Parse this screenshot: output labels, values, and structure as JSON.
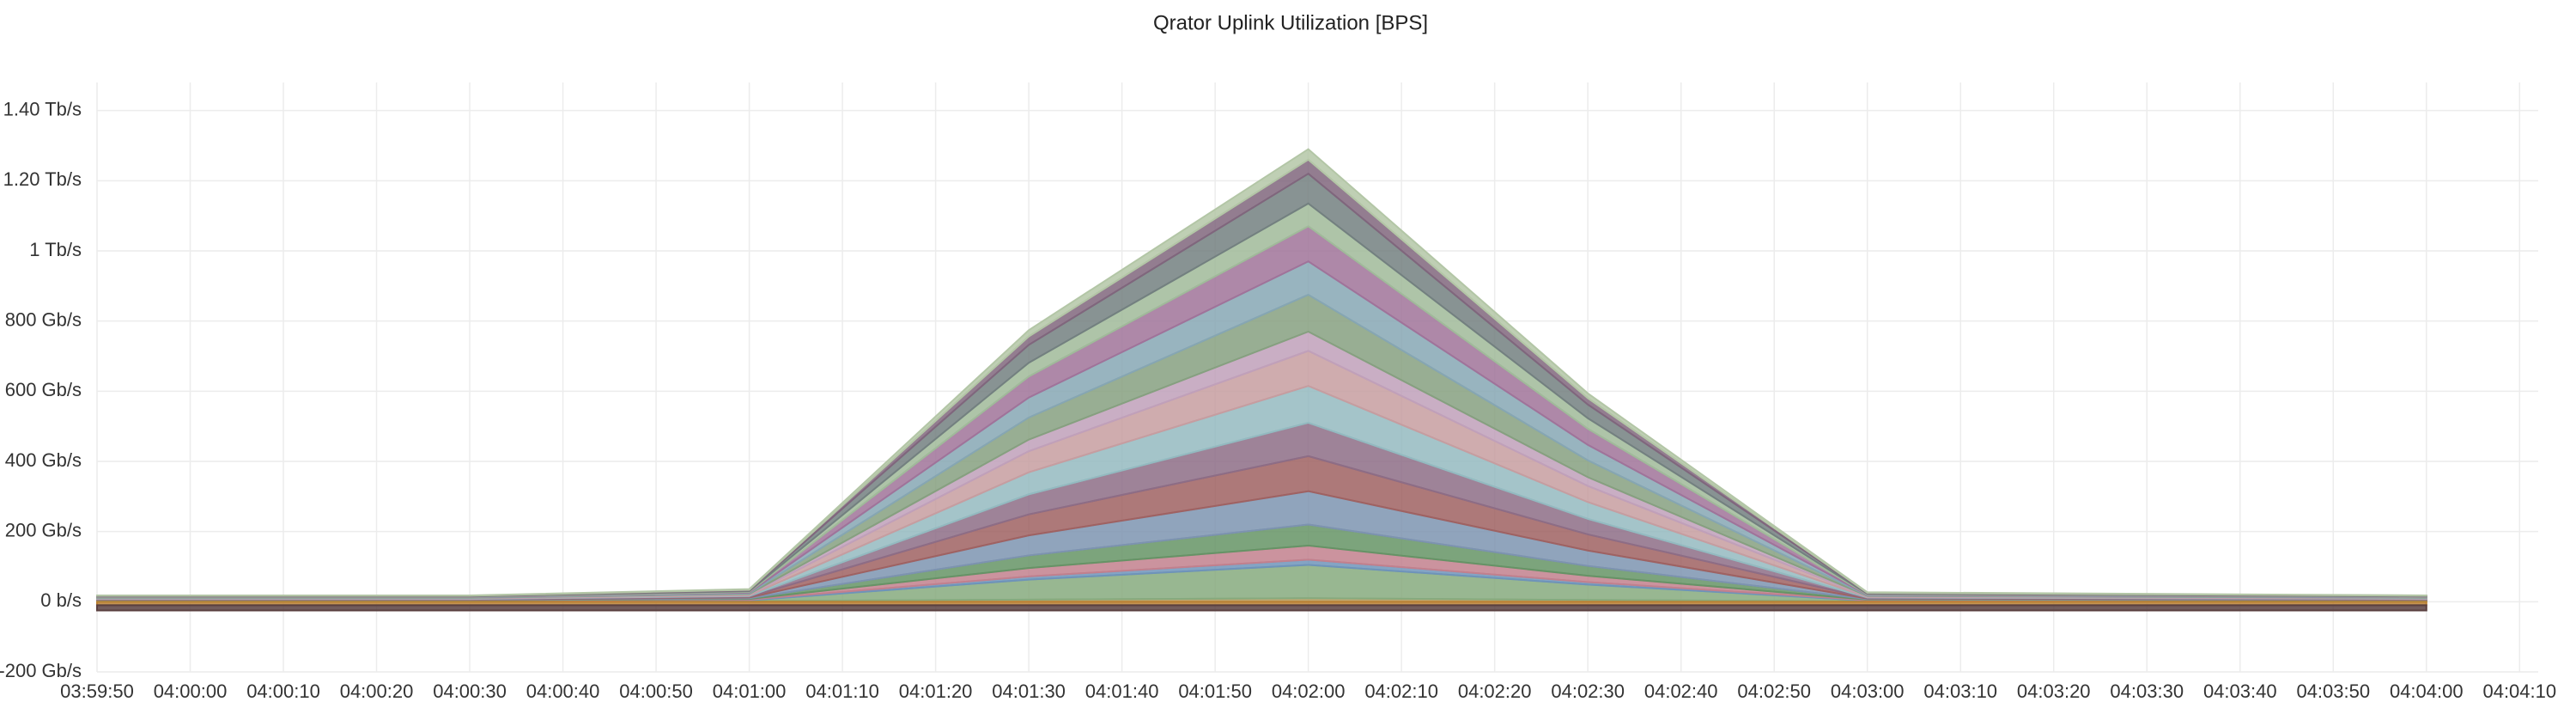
{
  "chart_data": {
    "type": "stacked_area",
    "title": "Qrator Uplink Utilization [BPS]",
    "x": [
      "03:59:50",
      "04:00:30",
      "04:01:00",
      "04:01:30",
      "04:02:00",
      "04:02:30",
      "04:03:00",
      "04:04:00"
    ],
    "xlim": [
      "03:59:50",
      "04:04:12"
    ],
    "xticks": [
      "03:59:50",
      "04:00:00",
      "04:00:10",
      "04:00:20",
      "04:00:30",
      "04:00:40",
      "04:00:50",
      "04:01:00",
      "04:01:10",
      "04:01:20",
      "04:01:30",
      "04:01:40",
      "04:01:50",
      "04:02:00",
      "04:02:10",
      "04:02:20",
      "04:02:30",
      "04:02:40",
      "04:02:50",
      "04:03:00",
      "04:03:10",
      "04:03:20",
      "04:03:30",
      "04:03:40",
      "04:03:50",
      "04:04:00",
      "04:04:10"
    ],
    "ylim": [
      -200,
      1480
    ],
    "yticks": [
      {
        "value": -200,
        "label": "-200 Gb/s"
      },
      {
        "value": 0,
        "label": "0 b/s"
      },
      {
        "value": 200,
        "label": "200 Gb/s"
      },
      {
        "value": 400,
        "label": "400 Gb/s"
      },
      {
        "value": 600,
        "label": "600 Gb/s"
      },
      {
        "value": 800,
        "label": "800 Gb/s"
      },
      {
        "value": 1000,
        "label": "1 Tb/s"
      },
      {
        "value": 1200,
        "label": "1.20 Tb/s"
      },
      {
        "value": 1400,
        "label": "1.40 Tb/s"
      }
    ],
    "grid": true,
    "series": [
      {
        "color": "#e0c070",
        "values": [
          1,
          1,
          2,
          6,
          10,
          5,
          1.5,
          1
        ]
      },
      {
        "color": "#a8d59e",
        "values": [
          1,
          1,
          2,
          57,
          95,
          44,
          1.5,
          1
        ]
      },
      {
        "color": "#8ab8e8",
        "values": [
          1,
          1,
          2,
          9,
          15,
          7,
          1.5,
          1
        ]
      },
      {
        "color": "#f2a0b0",
        "values": [
          1,
          1,
          2,
          24,
          40,
          18,
          1.5,
          1
        ]
      },
      {
        "color": "#7fb87f",
        "values": [
          1,
          1,
          2,
          36,
          60,
          28,
          1.5,
          1
        ]
      },
      {
        "color": "#9cb8dc",
        "values": [
          1,
          1,
          2,
          57,
          95,
          44,
          1.5,
          1
        ]
      },
      {
        "color": "#c77a7a",
        "values": [
          1,
          1,
          2,
          60,
          100,
          46,
          1.5,
          1
        ]
      },
      {
        "color": "#b088a8",
        "values": [
          1,
          1,
          2,
          57,
          95,
          44,
          1.5,
          1
        ]
      },
      {
        "color": "#b8e8f0",
        "values": [
          1,
          1,
          2,
          63,
          105,
          48,
          1.5,
          1
        ]
      },
      {
        "color": "#f8c4c8",
        "values": [
          1,
          1,
          2,
          60,
          100,
          46,
          1.5,
          1
        ]
      },
      {
        "color": "#f0c8e8",
        "values": [
          1,
          1,
          2,
          33,
          55,
          25,
          1.5,
          1
        ]
      },
      {
        "color": "#a8c8a0",
        "values": [
          1,
          1,
          2,
          63,
          105,
          48,
          1.5,
          1
        ]
      },
      {
        "color": "#a8d0e0",
        "values": [
          1,
          1,
          2,
          57,
          95,
          44,
          1.5,
          1
        ]
      },
      {
        "color": "#c890c0",
        "values": [
          1,
          1,
          2,
          60,
          100,
          46,
          1.5,
          1
        ]
      },
      {
        "color": "#c8e8c0",
        "values": [
          1,
          1,
          2,
          39,
          65,
          30,
          1.5,
          1
        ]
      },
      {
        "color": "#90a0a0",
        "values": [
          1,
          1,
          2,
          51,
          85,
          39,
          1.5,
          1
        ]
      },
      {
        "color": "#a0809c",
        "values": [
          1,
          1,
          2,
          24,
          40,
          18,
          1.5,
          1
        ]
      },
      {
        "color": "#e0f8d0",
        "values": [
          1,
          1,
          2,
          18,
          30,
          14,
          1.5,
          1
        ]
      },
      {
        "color": "#e8a040",
        "values": [
          -10,
          -10,
          -10,
          -10,
          -10,
          -10,
          -10,
          -10
        ]
      },
      {
        "color": "#705050",
        "values": [
          -15,
          -15,
          -15,
          -15,
          -15,
          -15,
          -15,
          -15
        ]
      }
    ]
  }
}
